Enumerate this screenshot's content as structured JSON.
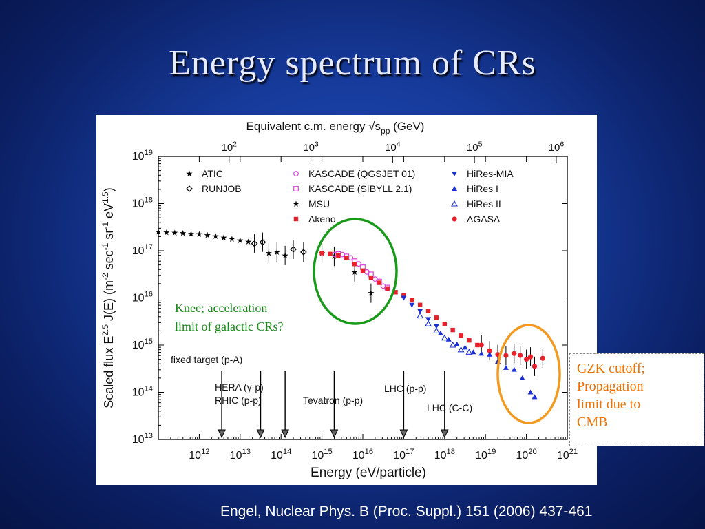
{
  "slide": {
    "title": "Energy spectrum of CRs",
    "citation": "Engel, Nuclear Phys. B (Proc. Suppl.) 151 (2006) 437-461",
    "knee_annotation": [
      "Knee; acceleration",
      "limit of galactic CRs?"
    ],
    "gzk_annotation": [
      "GZK cutoff;",
      "Propagation",
      "limit due to",
      "CMB"
    ],
    "colors": {
      "knee_circle": "#1a9a1a",
      "gzk_circle": "#f39a1e",
      "knee_text": "#178a17",
      "gzk_text": "#f07000",
      "background": "#163a9a"
    }
  },
  "chart_data": {
    "type": "scatter",
    "xscale": "log",
    "yscale": "log",
    "xlim_exp": [
      11,
      21
    ],
    "ylim_exp": [
      13,
      19
    ],
    "x_tick_exps": [
      12,
      13,
      14,
      15,
      16,
      17,
      18,
      19,
      20,
      21
    ],
    "y_tick_exps": [
      13,
      14,
      15,
      16,
      17,
      18,
      19
    ],
    "top_axis": {
      "label": "Equivalent c.m. energy √s_pp (GeV)",
      "tick_exps": [
        2,
        3,
        4,
        5,
        6
      ]
    },
    "xlabel": "Energy (eV/particle)",
    "ylabel": "Scaled flux E^2.5 J(E) (m^-2 sec^-1 sr^-1 eV^1.5)",
    "legend": [
      {
        "name": "ATIC",
        "marker": "star",
        "color": "#000000"
      },
      {
        "name": "RUNJOB",
        "marker": "diamond-open",
        "color": "#000000"
      },
      {
        "name": "KASCADE (QGSJET 01)",
        "marker": "circle-open",
        "color": "#e040e0"
      },
      {
        "name": "KASCADE (SIBYLL 2.1)",
        "marker": "square-open",
        "color": "#e040e0"
      },
      {
        "name": "MSU",
        "marker": "star",
        "color": "#000000"
      },
      {
        "name": "Akeno",
        "marker": "square",
        "color": "#e8202a"
      },
      {
        "name": "HiRes-MIA",
        "marker": "triangle-down",
        "color": "#1a2fd6"
      },
      {
        "name": "HiRes I",
        "marker": "triangle",
        "color": "#1a2fd6"
      },
      {
        "name": "HiRes II",
        "marker": "triangle-open",
        "color": "#1a2fd6"
      },
      {
        "name": "AGASA",
        "marker": "circle",
        "color": "#e8202a"
      }
    ],
    "series": [
      {
        "name": "ATIC",
        "marker": "star",
        "color": "#000000",
        "points": [
          [
            11.0,
            17.4
          ],
          [
            11.2,
            17.39
          ],
          [
            11.4,
            17.38
          ],
          [
            11.6,
            17.37
          ],
          [
            11.8,
            17.36
          ],
          [
            12.0,
            17.35
          ],
          [
            12.2,
            17.33
          ],
          [
            12.4,
            17.31
          ],
          [
            12.6,
            17.28
          ],
          [
            12.8,
            17.25
          ],
          [
            13.0,
            17.22
          ],
          [
            13.2,
            17.19
          ]
        ]
      },
      {
        "name": "RUNJOB",
        "marker": "diamond-open",
        "color": "#000000",
        "points": [
          [
            13.35,
            17.15
          ],
          [
            13.55,
            17.18
          ],
          [
            14.3,
            17.03
          ],
          [
            14.55,
            16.97
          ]
        ]
      },
      {
        "name": "MSU",
        "marker": "star",
        "color": "#000000",
        "points": [
          [
            13.7,
            16.95
          ],
          [
            13.9,
            16.97
          ],
          [
            14.1,
            16.9
          ],
          [
            15.0,
            16.95
          ],
          [
            15.3,
            16.88
          ],
          [
            15.8,
            16.55
          ],
          [
            16.2,
            16.1
          ]
        ]
      },
      {
        "name": "KASCADE (QGSJET 01)",
        "marker": "circle-open",
        "color": "#e040e0",
        "points": [
          [
            15.3,
            16.92
          ],
          [
            15.5,
            16.92
          ],
          [
            15.7,
            16.85
          ],
          [
            15.9,
            16.72
          ],
          [
            16.1,
            16.55
          ],
          [
            16.3,
            16.4
          ],
          [
            16.5,
            16.25
          ]
        ]
      },
      {
        "name": "KASCADE (SIBYLL 2.1)",
        "marker": "square-open",
        "color": "#e040e0",
        "points": [
          [
            15.4,
            16.93
          ],
          [
            15.6,
            16.88
          ],
          [
            15.8,
            16.78
          ],
          [
            16.0,
            16.65
          ],
          [
            16.2,
            16.5
          ],
          [
            16.4,
            16.35
          ],
          [
            16.6,
            16.22
          ]
        ]
      },
      {
        "name": "Akeno",
        "marker": "square",
        "color": "#e8202a",
        "points": [
          [
            15.0,
            16.95
          ],
          [
            15.2,
            16.93
          ],
          [
            15.4,
            16.9
          ],
          [
            15.6,
            16.85
          ],
          [
            15.8,
            16.72
          ],
          [
            16.0,
            16.58
          ],
          [
            16.2,
            16.43
          ],
          [
            16.4,
            16.32
          ],
          [
            16.6,
            16.2
          ],
          [
            16.8,
            16.12
          ],
          [
            17.0,
            16.05
          ],
          [
            17.2,
            15.95
          ],
          [
            17.4,
            15.85
          ],
          [
            17.6,
            15.72
          ],
          [
            17.8,
            15.58
          ],
          [
            18.0,
            15.45
          ],
          [
            18.2,
            15.32
          ],
          [
            18.4,
            15.2
          ],
          [
            18.6,
            15.1
          ],
          [
            18.8,
            15.0
          ]
        ]
      },
      {
        "name": "AGASA",
        "marker": "circle",
        "color": "#e8202a",
        "points": [
          [
            18.9,
            15.0
          ],
          [
            19.1,
            14.88
          ],
          [
            19.3,
            14.8
          ],
          [
            19.5,
            14.78
          ],
          [
            19.7,
            14.82
          ],
          [
            19.85,
            14.78
          ],
          [
            20.0,
            14.7
          ],
          [
            20.1,
            14.75
          ],
          [
            20.2,
            14.55
          ],
          [
            20.4,
            14.72
          ]
        ]
      },
      {
        "name": "HiRes-MIA",
        "marker": "triangle-down",
        "color": "#1a2fd6",
        "points": [
          [
            17.0,
            16.0
          ],
          [
            17.2,
            15.85
          ],
          [
            17.4,
            15.72
          ],
          [
            17.6,
            15.55
          ],
          [
            17.8,
            15.4
          ]
        ]
      },
      {
        "name": "HiRes I",
        "marker": "triangle",
        "color": "#1a2fd6",
        "points": [
          [
            17.9,
            15.25
          ],
          [
            18.1,
            15.12
          ],
          [
            18.3,
            15.02
          ],
          [
            18.5,
            14.95
          ],
          [
            18.7,
            14.85
          ],
          [
            18.9,
            14.82
          ],
          [
            19.1,
            14.8
          ],
          [
            19.3,
            14.65
          ],
          [
            19.5,
            14.52
          ],
          [
            19.7,
            14.48
          ],
          [
            19.9,
            14.3
          ],
          [
            20.1,
            14.0
          ],
          [
            20.2,
            13.9
          ]
        ]
      },
      {
        "name": "HiRes II",
        "marker": "triangle-open",
        "color": "#1a2fd6",
        "points": [
          [
            17.4,
            15.62
          ],
          [
            17.6,
            15.45
          ],
          [
            17.8,
            15.3
          ],
          [
            18.0,
            15.15
          ],
          [
            18.2,
            15.0
          ],
          [
            18.4,
            14.9
          ],
          [
            18.6,
            14.85
          ]
        ]
      }
    ],
    "arrows": [
      {
        "label": "fixed target (p-A)",
        "x_exp": 12.55
      },
      {
        "label": "HERA (γ-p)",
        "label2": "RHIC (p-p)",
        "x_exp": 13.5
      },
      {
        "label": "",
        "x_exp": 14.1
      },
      {
        "label": "Tevatron (p-p)",
        "x_exp": 15.3
      },
      {
        "label": "LHC (p-p)",
        "x_exp": 17.0
      },
      {
        "label": "LHC (C-C)",
        "x_exp": 18.0
      }
    ]
  }
}
